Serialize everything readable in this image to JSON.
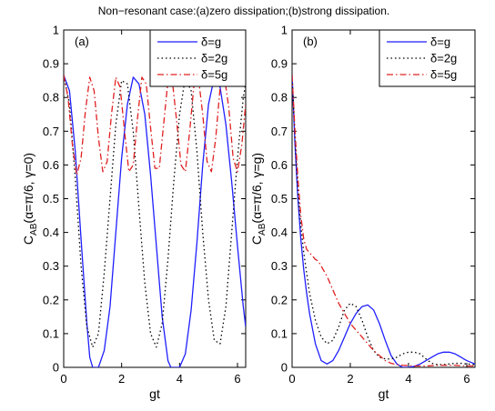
{
  "figure_title": "Non−resonant case:(a)zero dissipation;(b)strong dissipation.",
  "colors": {
    "series": [
      "#1f1fff",
      "#000000",
      "#e02020"
    ],
    "axes": "#000000"
  },
  "chart_data": [
    {
      "type": "line",
      "panel_label": "(a)",
      "xlabel": "gt",
      "ylabel": "C_AB(α=π/6, γ=0)",
      "ylabel_parts": {
        "main": "C",
        "sub": "AB",
        "rest": "(α=π/6, γ=0)"
      },
      "xlim": [
        0,
        6.283
      ],
      "ylim": [
        0,
        1
      ],
      "xticks": [
        0,
        2,
        4,
        6
      ],
      "xtick_labels": [
        "0",
        "2",
        "4",
        "6"
      ],
      "yticks": [
        0,
        0.1,
        0.2,
        0.3,
        0.4,
        0.5,
        0.6,
        0.7,
        0.8,
        0.9,
        1
      ],
      "ytick_labels": [
        "0",
        "0.1",
        "0.2",
        "0.3",
        "0.4",
        "0.5",
        "0.6",
        "0.7",
        "0.8",
        "0.9",
        "1"
      ],
      "legend_position": "top-right",
      "series": [
        {
          "name": "δ=g",
          "style": "solid",
          "x": [
            0,
            0.2,
            0.4,
            0.6,
            0.8,
            0.9,
            1.0,
            1.2,
            1.4,
            1.6,
            1.8,
            2.0,
            2.2,
            2.4,
            2.6,
            2.8,
            3.0,
            3.2,
            3.4,
            3.6,
            3.7,
            3.8,
            4.0,
            4.2,
            4.4,
            4.6,
            4.8,
            5.0,
            5.2,
            5.4,
            5.6,
            5.8,
            6.0,
            6.2,
            6.283
          ],
          "y": [
            0.866,
            0.82,
            0.64,
            0.38,
            0.13,
            0.03,
            0,
            0,
            0.05,
            0.18,
            0.4,
            0.62,
            0.78,
            0.86,
            0.84,
            0.75,
            0.57,
            0.36,
            0.15,
            0.02,
            0,
            0,
            0,
            0.04,
            0.17,
            0.37,
            0.6,
            0.78,
            0.86,
            0.83,
            0.72,
            0.55,
            0.36,
            0.18,
            0.12
          ]
        },
        {
          "name": "δ=2g",
          "style": "dotted",
          "x": [
            0,
            0.2,
            0.4,
            0.6,
            0.8,
            1.0,
            1.2,
            1.4,
            1.6,
            1.8,
            2.0,
            2.2,
            2.4,
            2.6,
            2.8,
            3.0,
            3.2,
            3.4,
            3.6,
            3.8,
            4.0,
            4.2,
            4.4,
            4.6,
            4.8,
            5.0,
            5.2,
            5.4,
            5.6,
            5.8,
            6.0,
            6.2,
            6.283
          ],
          "y": [
            0.866,
            0.78,
            0.56,
            0.3,
            0.12,
            0.06,
            0.1,
            0.28,
            0.5,
            0.72,
            0.85,
            0.84,
            0.7,
            0.47,
            0.25,
            0.1,
            0.06,
            0.13,
            0.32,
            0.55,
            0.75,
            0.86,
            0.82,
            0.64,
            0.4,
            0.2,
            0.08,
            0.07,
            0.18,
            0.4,
            0.62,
            0.8,
            0.84
          ]
        },
        {
          "name": "δ=5g",
          "style": "dashdot",
          "x": [
            0,
            0.15,
            0.3,
            0.45,
            0.6,
            0.75,
            0.9,
            1.05,
            1.2,
            1.35,
            1.5,
            1.65,
            1.8,
            1.95,
            2.1,
            2.25,
            2.4,
            2.55,
            2.7,
            2.85,
            3.0,
            3.15,
            3.3,
            3.45,
            3.6,
            3.75,
            3.9,
            4.05,
            4.2,
            4.35,
            4.5,
            4.65,
            4.8,
            4.95,
            5.1,
            5.25,
            5.4,
            5.55,
            5.7,
            5.85,
            6.0,
            6.15,
            6.283
          ],
          "y": [
            0.866,
            0.8,
            0.66,
            0.57,
            0.62,
            0.76,
            0.86,
            0.82,
            0.68,
            0.58,
            0.61,
            0.75,
            0.86,
            0.83,
            0.7,
            0.58,
            0.6,
            0.74,
            0.86,
            0.84,
            0.71,
            0.59,
            0.59,
            0.72,
            0.85,
            0.85,
            0.73,
            0.6,
            0.58,
            0.7,
            0.84,
            0.86,
            0.75,
            0.61,
            0.58,
            0.68,
            0.83,
            0.86,
            0.77,
            0.62,
            0.58,
            0.66,
            0.78
          ]
        }
      ]
    },
    {
      "type": "line",
      "panel_label": "(b)",
      "xlabel": "gt",
      "ylabel": "C_AB(α=π/6, γ=g)",
      "ylabel_parts": {
        "main": "C",
        "sub": "AB",
        "rest": "(α=π/6, γ=g)"
      },
      "xlim": [
        0,
        6.283
      ],
      "ylim": [
        0,
        1
      ],
      "xticks": [
        0,
        2,
        4,
        6
      ],
      "xtick_labels": [
        "0",
        "2",
        "4",
        "6"
      ],
      "yticks": [
        0,
        0.1,
        0.2,
        0.3,
        0.4,
        0.5,
        0.6,
        0.7,
        0.8,
        0.9,
        1
      ],
      "ytick_labels": [
        "0",
        "0.1",
        "0.2",
        "0.3",
        "0.4",
        "0.5",
        "0.6",
        "0.7",
        "0.8",
        "0.9",
        "1"
      ],
      "legend_position": "top-right",
      "series": [
        {
          "name": "δ=g",
          "style": "solid",
          "x": [
            0,
            0.1,
            0.2,
            0.3,
            0.4,
            0.5,
            0.6,
            0.8,
            1.0,
            1.2,
            1.4,
            1.6,
            1.8,
            2.0,
            2.2,
            2.4,
            2.6,
            2.8,
            3.0,
            3.2,
            3.4,
            3.6,
            3.8,
            4.0,
            4.2,
            4.4,
            4.6,
            4.8,
            5.0,
            5.2,
            5.4,
            5.6,
            5.8,
            6.0,
            6.283
          ],
          "y": [
            0.866,
            0.66,
            0.5,
            0.38,
            0.29,
            0.22,
            0.16,
            0.07,
            0.02,
            0.01,
            0.02,
            0.05,
            0.09,
            0.13,
            0.16,
            0.18,
            0.185,
            0.17,
            0.13,
            0.08,
            0.035,
            0.01,
            0,
            0,
            0.003,
            0.01,
            0.02,
            0.03,
            0.04,
            0.045,
            0.045,
            0.04,
            0.03,
            0.02,
            0.01
          ]
        },
        {
          "name": "δ=2g",
          "style": "dotted",
          "x": [
            0,
            0.1,
            0.2,
            0.3,
            0.4,
            0.5,
            0.6,
            0.8,
            1.0,
            1.2,
            1.4,
            1.6,
            1.8,
            2.0,
            2.2,
            2.4,
            2.6,
            2.8,
            3.0,
            3.2,
            3.4,
            3.6,
            3.8,
            4.0,
            4.2,
            4.4,
            4.6,
            4.8,
            5.0,
            5.2,
            5.4,
            5.6,
            5.8,
            6.0,
            6.283
          ],
          "y": [
            0.866,
            0.68,
            0.52,
            0.42,
            0.34,
            0.28,
            0.22,
            0.14,
            0.09,
            0.07,
            0.08,
            0.12,
            0.17,
            0.19,
            0.18,
            0.14,
            0.09,
            0.05,
            0.03,
            0.025,
            0.025,
            0.03,
            0.04,
            0.045,
            0.045,
            0.04,
            0.025,
            0.012,
            0.008,
            0.008,
            0.01,
            0.012,
            0.012,
            0.01,
            0.008
          ]
        },
        {
          "name": "δ=5g",
          "style": "dashdot",
          "x": [
            0,
            0.1,
            0.2,
            0.3,
            0.4,
            0.5,
            0.6,
            0.7,
            0.8,
            0.9,
            1.0,
            1.2,
            1.4,
            1.6,
            1.8,
            2.0,
            2.2,
            2.4,
            2.6,
            2.8,
            3.0,
            3.2,
            3.4,
            3.6,
            3.8,
            4.0,
            4.2,
            4.4,
            4.6,
            4.8,
            5.0,
            5.2,
            5.4,
            5.6,
            5.8,
            6.0,
            6.283
          ],
          "y": [
            0.866,
            0.7,
            0.56,
            0.45,
            0.38,
            0.35,
            0.34,
            0.33,
            0.32,
            0.315,
            0.3,
            0.27,
            0.23,
            0.19,
            0.16,
            0.13,
            0.11,
            0.09,
            0.07,
            0.05,
            0.035,
            0.02,
            0.012,
            0.008,
            0.006,
            0.005,
            0.004,
            0.004,
            0.004,
            0.005,
            0.006,
            0.006,
            0.006,
            0.006,
            0.005,
            0.004,
            0.004
          ]
        }
      ]
    }
  ]
}
